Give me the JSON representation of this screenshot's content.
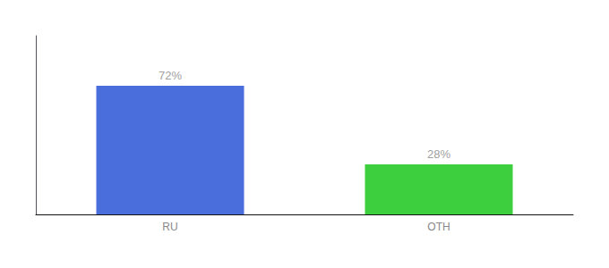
{
  "chart_data": {
    "type": "bar",
    "categories": [
      "RU",
      "OTH"
    ],
    "values": [
      72,
      28
    ],
    "value_labels": [
      "72%",
      "28%"
    ],
    "colors": [
      "#4a6fdc",
      "#3dcf3d"
    ],
    "data_labels": true,
    "ylim": [
      0,
      100
    ],
    "grid": false,
    "tick_labels": "x"
  }
}
